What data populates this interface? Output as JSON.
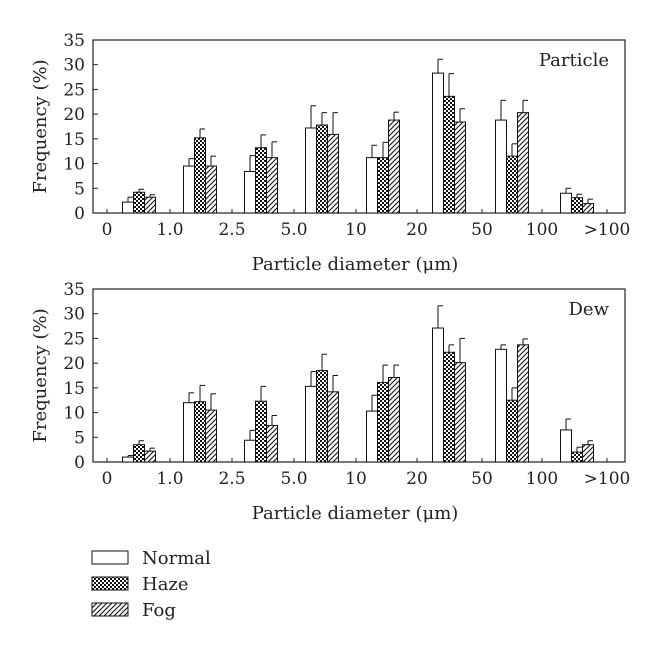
{
  "chart_data": [
    {
      "type": "bar",
      "title": "Particle",
      "xlabel": "Particle diameter (μm)",
      "ylabel": "Frequency (%)",
      "ylim": [
        0,
        35
      ],
      "yticks": [
        0,
        5,
        10,
        15,
        20,
        25,
        30,
        35
      ],
      "boundary_labels": [
        "0",
        "1.0",
        "2.5",
        "5.0",
        "10",
        "20",
        "50",
        "100",
        ">100"
      ],
      "categories": [
        "0-1.0",
        "1.0-2.5",
        "2.5-5.0",
        "5.0-10",
        "10-20",
        "20-50",
        "50-100",
        ">100"
      ],
      "series": [
        {
          "name": "Normal",
          "pattern": "open",
          "values": [
            2.2,
            9.5,
            8.4,
            17.2,
            11.2,
            28.3,
            18.8,
            4.0
          ],
          "errors": [
            1.0,
            1.5,
            3.2,
            4.5,
            2.5,
            2.8,
            4.0,
            1.0
          ]
        },
        {
          "name": "Haze",
          "pattern": "crosshatch",
          "values": [
            4.2,
            15.2,
            13.2,
            17.8,
            11.2,
            23.6,
            11.5,
            3.1
          ],
          "errors": [
            0.6,
            1.8,
            2.6,
            2.5,
            3.1,
            4.6,
            2.5,
            0.7
          ]
        },
        {
          "name": "Fog",
          "pattern": "diagonal",
          "values": [
            3.2,
            9.5,
            11.2,
            15.9,
            18.8,
            18.4,
            20.3,
            1.9
          ],
          "errors": [
            0.5,
            2.0,
            3.2,
            4.4,
            1.6,
            2.7,
            2.5,
            0.9
          ]
        }
      ]
    },
    {
      "type": "bar",
      "title": "Dew",
      "xlabel": "Particle diameter (μm)",
      "ylabel": "Frequency (%)",
      "ylim": [
        0,
        35
      ],
      "yticks": [
        0,
        5,
        10,
        15,
        20,
        25,
        30,
        35
      ],
      "boundary_labels": [
        "0",
        "1.0",
        "2.5",
        "5.0",
        "10",
        "20",
        "50",
        "100",
        ">100"
      ],
      "categories": [
        "0-1.0",
        "1.0-2.5",
        "2.5-5.0",
        "5.0-10",
        "10-20",
        "20-50",
        "50-100",
        ">100"
      ],
      "series": [
        {
          "name": "Normal",
          "pattern": "open",
          "values": [
            1.0,
            12.0,
            4.4,
            15.3,
            10.3,
            27.1,
            22.8,
            6.5
          ],
          "errors": [
            0.3,
            2.0,
            2.0,
            3.0,
            3.2,
            4.5,
            0.9,
            2.2
          ]
        },
        {
          "name": "Haze",
          "pattern": "crosshatch",
          "values": [
            3.5,
            12.2,
            12.3,
            18.5,
            16.1,
            22.2,
            12.5,
            2.0
          ],
          "errors": [
            0.8,
            3.3,
            3.0,
            3.3,
            3.5,
            1.5,
            2.5,
            1.0
          ]
        },
        {
          "name": "Fog",
          "pattern": "diagonal",
          "values": [
            2.2,
            10.5,
            7.4,
            14.2,
            17.1,
            20.1,
            23.7,
            3.5
          ],
          "errors": [
            0.6,
            3.3,
            2.0,
            3.3,
            2.5,
            4.9,
            1.2,
            0.8
          ]
        }
      ]
    }
  ],
  "legend": [
    {
      "label": "Normal",
      "pattern": "open"
    },
    {
      "label": "Haze",
      "pattern": "crosshatch"
    },
    {
      "label": "Fog",
      "pattern": "diagonal"
    }
  ]
}
